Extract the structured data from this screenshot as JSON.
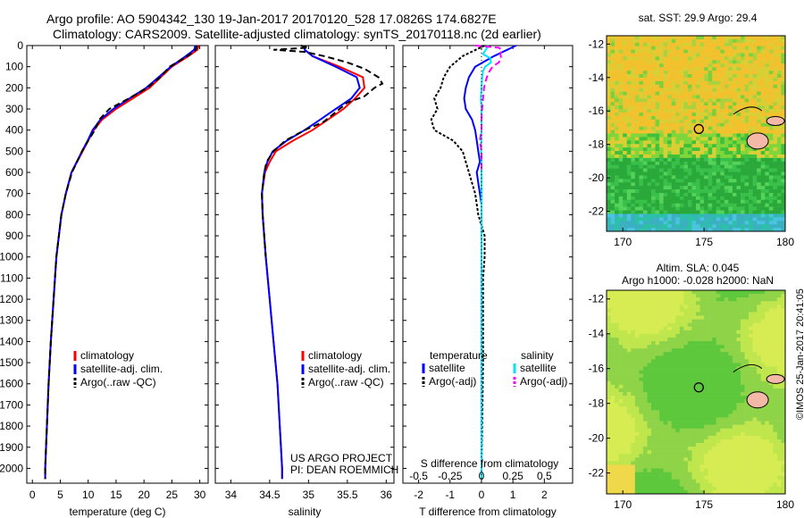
{
  "title": {
    "line1": "Argo profile: AO 5904342_130 19-Jan-2017 20170120_528 17.0826S 174.6827E",
    "line2": "Climatology: CARS2009. Satellite-adjusted climatology: synTS_20170118.nc (2d earlier)"
  },
  "depth_ticks": [
    0,
    100,
    200,
    300,
    400,
    500,
    600,
    700,
    800,
    900,
    1000,
    1100,
    1200,
    1300,
    1400,
    1500,
    1600,
    1700,
    1800,
    1900,
    2000
  ],
  "colors": {
    "climatology": "#ff0000",
    "satellite": "#0000ff",
    "argo": "#000000",
    "sal_satellite": "#00e5ff",
    "sal_argo": "#ff00ff"
  },
  "chart_data": [
    {
      "type": "line",
      "id": "temperature",
      "xlabel": "temperature (deg C)",
      "xlim": [
        -1,
        31.5
      ],
      "ylim": [
        2070,
        0
      ],
      "xticks": [
        0,
        5,
        10,
        15,
        20,
        25,
        30
      ],
      "legend": [
        "climatology",
        "satellite-adj. clim.",
        "Argo(..raw -QC)"
      ],
      "series": [
        {
          "name": "climatology",
          "depth": [
            0,
            20,
            50,
            100,
            150,
            200,
            250,
            300,
            350,
            400,
            450,
            500,
            600,
            700,
            800,
            1000,
            1200,
            1400,
            1600,
            1800,
            2000,
            2050
          ],
          "values": [
            29.8,
            29.6,
            28.0,
            25.0,
            23.0,
            21.0,
            18.0,
            15.0,
            12.5,
            11.0,
            10.0,
            9.0,
            7.0,
            6.0,
            5.2,
            4.3,
            3.8,
            3.3,
            2.9,
            2.6,
            2.3,
            2.3
          ]
        },
        {
          "name": "satellite-adj. clim.",
          "depth": [
            0,
            20,
            50,
            100,
            150,
            200,
            250,
            300,
            350,
            400,
            450,
            500,
            600,
            700,
            800,
            1000,
            1200,
            1400,
            1600,
            1800,
            2000,
            2050
          ],
          "values": [
            29.2,
            29.0,
            27.5,
            24.8,
            22.6,
            20.4,
            17.4,
            14.5,
            12.2,
            10.8,
            9.9,
            8.9,
            7.0,
            6.0,
            5.2,
            4.3,
            3.8,
            3.3,
            2.9,
            2.6,
            2.3,
            2.3
          ]
        },
        {
          "name": "Argo(..raw -QC)",
          "depth": [
            0,
            20,
            50,
            100,
            150,
            200,
            250,
            300,
            350,
            400,
            450,
            500,
            600,
            700,
            800,
            1000,
            1200,
            1400,
            1600,
            1800,
            2000,
            2050
          ],
          "values": [
            29.5,
            29.3,
            27.8,
            24.6,
            22.9,
            20.6,
            17.3,
            13.8,
            12.0,
            11.2,
            10.0,
            8.9,
            7.1,
            6.0,
            5.2,
            4.3,
            3.8,
            3.3,
            2.9,
            2.6,
            2.3,
            2.3
          ]
        }
      ]
    },
    {
      "type": "line",
      "id": "salinity",
      "xlabel": "salinity",
      "xlim": [
        33.8,
        36.1
      ],
      "ylim": [
        2070,
        0
      ],
      "xticks": [
        34,
        34.5,
        35,
        35.5,
        36
      ],
      "legend": [
        "climatology",
        "satellite-adj. clim.",
        "Argo(..raw -QC)"
      ],
      "series": [
        {
          "name": "climatology",
          "depth": [
            0,
            20,
            50,
            100,
            150,
            200,
            250,
            300,
            350,
            400,
            450,
            500,
            550,
            600,
            700,
            800,
            1000,
            1200,
            1400,
            1600,
            1800,
            2000,
            2050
          ],
          "values": [
            34.95,
            34.95,
            35.05,
            35.4,
            35.7,
            35.72,
            35.6,
            35.45,
            35.25,
            35.05,
            34.8,
            34.58,
            34.5,
            34.44,
            34.4,
            34.41,
            34.45,
            34.5,
            34.55,
            34.6,
            34.63,
            34.66,
            34.66
          ]
        },
        {
          "name": "satellite-adj. clim.",
          "depth": [
            0,
            20,
            50,
            100,
            150,
            200,
            250,
            300,
            350,
            400,
            450,
            500,
            550,
            600,
            700,
            800,
            1000,
            1200,
            1400,
            1600,
            1800,
            2000,
            2050
          ],
          "values": [
            34.95,
            34.95,
            35.05,
            35.35,
            35.62,
            35.66,
            35.55,
            35.35,
            35.15,
            34.95,
            34.72,
            34.54,
            34.47,
            34.43,
            34.4,
            34.41,
            34.45,
            34.5,
            34.55,
            34.6,
            34.63,
            34.66,
            34.66
          ]
        },
        {
          "name": "Argo(..raw -QC)",
          "depth": [
            0,
            10,
            20,
            30,
            50,
            80,
            110,
            150,
            180,
            200,
            240,
            270,
            300,
            330,
            360,
            400,
            450,
            500,
            550,
            600,
            700,
            800,
            900,
            1000
          ],
          "values": [
            34.9,
            35.0,
            34.55,
            34.95,
            35.2,
            35.5,
            35.72,
            35.9,
            35.95,
            35.85,
            35.72,
            35.5,
            35.4,
            35.3,
            35.2,
            34.95,
            34.7,
            34.55,
            34.46,
            34.43,
            34.4,
            34.41,
            34.43,
            34.45
          ]
        }
      ]
    },
    {
      "type": "line",
      "id": "difference",
      "xlabel_top": "S difference from climatology",
      "xlabel": "T difference from climatology",
      "xlim": [
        -2.5,
        2.9
      ],
      "ylim": [
        2070,
        0
      ],
      "xticks": [
        -2,
        -1,
        0,
        1,
        2
      ],
      "xticks_s": [
        -0.5,
        -0.25,
        0,
        0.25,
        0.5
      ],
      "legend_temperature": {
        "heading": "temperature",
        "items": [
          "satellite",
          "Argo(-adj)"
        ]
      },
      "legend_salinity": {
        "heading": "salinity",
        "items": [
          "satellite",
          "Argo(-adj)"
        ]
      },
      "series": [
        {
          "name": "T satellite",
          "depth": [
            0,
            50,
            100,
            150,
            200,
            250,
            300,
            350,
            400,
            450,
            500,
            550,
            600,
            650,
            700,
            750,
            800,
            900,
            1000,
            1500,
            2000,
            2050
          ],
          "values": [
            1.1,
            0.4,
            -0.2,
            -0.4,
            -0.5,
            -0.55,
            -0.5,
            -0.3,
            -0.2,
            -0.15,
            -0.1,
            -0.05,
            -0.15,
            -0.1,
            -0.05,
            0,
            0,
            0,
            0,
            0,
            0,
            0
          ]
        },
        {
          "name": "T Argo(-adj)",
          "depth": [
            0,
            50,
            100,
            150,
            200,
            250,
            300,
            350,
            400,
            450,
            500,
            600,
            700,
            800,
            900,
            1000,
            1100,
            1500,
            2000
          ],
          "values": [
            0.1,
            -0.6,
            -1.0,
            -1.2,
            -1.3,
            -1.5,
            -1.4,
            -1.6,
            -1.5,
            -0.9,
            -0.6,
            -0.4,
            -0.2,
            -0.1,
            0.1,
            0.1,
            0.05,
            0.05,
            0
          ]
        },
        {
          "name": "S satellite",
          "depth": [
            0,
            40,
            60,
            80,
            100,
            120,
            150,
            200,
            250,
            300,
            400,
            500,
            600,
            700,
            800,
            1000,
            1500,
            2000,
            2050
          ],
          "values": [
            0.22,
            0.05,
            0.28,
            0.3,
            0.12,
            0.05,
            0.02,
            0,
            -0.02,
            0,
            0,
            -0.01,
            0,
            0,
            0,
            0,
            0,
            0,
            0
          ]
        },
        {
          "name": "S Argo(-adj)",
          "depth": [
            0,
            10,
            20,
            40,
            60,
            80,
            100,
            130,
            160,
            200,
            250,
            300,
            350,
            400,
            450,
            500,
            550,
            600
          ],
          "values": [
            -0.2,
            0.55,
            0.65,
            0.6,
            0.63,
            0.55,
            0.35,
            0.22,
            0.15,
            0.08,
            0.05,
            0.02,
            0,
            0,
            -0.05,
            0,
            0,
            0
          ]
        }
      ]
    },
    {
      "type": "heatmap",
      "id": "sst_map",
      "title": "sat. SST: 29.9 Argo: 29.4",
      "xlim": [
        169,
        180
      ],
      "ylim": [
        -23.2,
        -11.5
      ],
      "xticks": [
        170,
        175,
        180
      ],
      "yticks": [
        -12,
        -14,
        -16,
        -18,
        -20,
        -22
      ],
      "marker": {
        "lon": 174.68,
        "lat": -17.08
      }
    },
    {
      "type": "heatmap",
      "id": "sla_map",
      "title1": "Altim. SLA: 0.045",
      "title2": "Argo h1000: -0.028 h2000: NaN",
      "xlim": [
        169,
        180
      ],
      "ylim": [
        -23.2,
        -11.5
      ],
      "xticks": [
        170,
        175,
        180
      ],
      "yticks": [
        -12,
        -14,
        -16,
        -18,
        -20,
        -22
      ],
      "marker": {
        "lon": 174.68,
        "lat": -17.08
      }
    }
  ],
  "project_line1": "US ARGO PROJECT",
  "project_line2": "PI: DEAN ROEMMICH",
  "watermark": "©IMOS 25-Jan-2017 20:41:05"
}
